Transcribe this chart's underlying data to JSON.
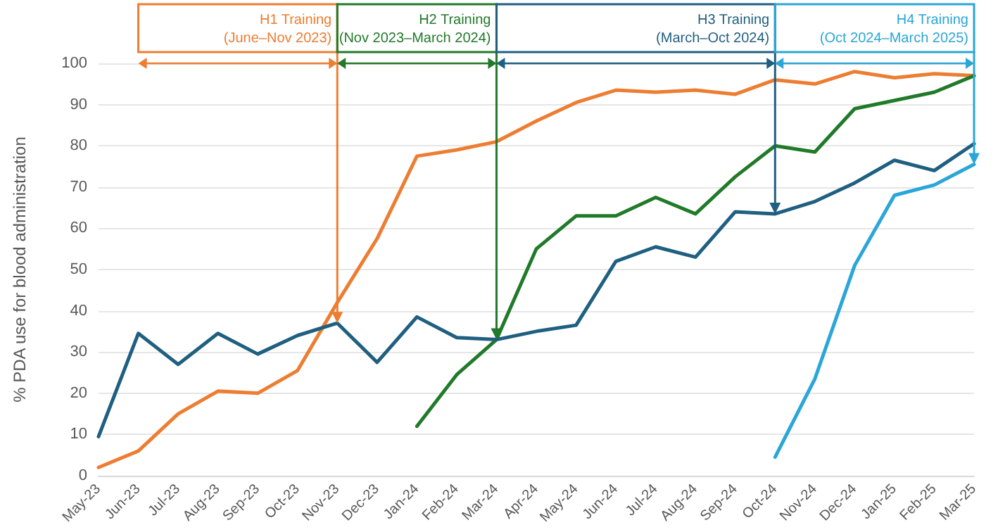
{
  "chart_data": {
    "type": "line",
    "ylabel": "% PDA use for blood administration",
    "categories": [
      "May-23",
      "Jun-23",
      "Jul-23",
      "Aug-23",
      "Sep-23",
      "Oct-23",
      "Nov-23",
      "Dec-23",
      "Jan-24",
      "Feb-24",
      "Mar-24",
      "Apr-24",
      "May-24",
      "Jun-24",
      "Jul-24",
      "Aug-24",
      "Sep-24",
      "Oct-24",
      "Nov-24",
      "Dec-24",
      "Jan-25",
      "Feb-25",
      "Mar-25"
    ],
    "series": [
      {
        "color": "#ed7d31",
        "values": [
          2,
          6,
          15,
          20.5,
          20,
          25.5,
          42,
          57.5,
          77.5,
          79,
          81,
          86,
          90.5,
          93.5,
          93,
          93.5,
          92.5,
          96,
          95,
          98,
          96.5,
          97.5,
          97
        ]
      },
      {
        "color": "#217a2a",
        "values": [
          null,
          null,
          null,
          null,
          null,
          null,
          null,
          null,
          12,
          24.5,
          33,
          55,
          63,
          63,
          67.5,
          63.5,
          72.5,
          80,
          78.5,
          89,
          91,
          93,
          97
        ]
      },
      {
        "color": "#1f5f80",
        "values": [
          9.5,
          34.5,
          27,
          34.5,
          29.5,
          34,
          37,
          27.5,
          38.5,
          33.5,
          33,
          35,
          36.5,
          52,
          55.5,
          53,
          64,
          63.5,
          66.5,
          71,
          76.5,
          74,
          80.5
        ]
      },
      {
        "color": "#2aa6d8",
        "values": [
          null,
          null,
          null,
          null,
          null,
          null,
          null,
          null,
          null,
          null,
          null,
          null,
          null,
          null,
          null,
          null,
          null,
          4.5,
          23.5,
          51,
          68,
          70.5,
          75.5
        ]
      }
    ],
    "annotations": [
      {
        "text": "H1 Training\n(June–Nov 2023)",
        "x": "Nov-23",
        "y": 37
      },
      {
        "text": "H2 Training\n(Nov 2023–March 2024)",
        "x": "Mar-24",
        "y": 33
      },
      {
        "text": "H3 Training\n(March–Oct 2024)",
        "x": "Oct-24",
        "y": 63.5
      },
      {
        "text": "H4 Training\n(Oct 2024–March 2025)",
        "x": "Mar-25",
        "y": 75.5
      }
    ],
    "ylim": [
      0,
      100
    ],
    "yticks": [
      0,
      10,
      20,
      30,
      40,
      50,
      60,
      70,
      80,
      90,
      100
    ],
    "grid": "y",
    "marker": "none",
    "line_style": "solid"
  }
}
